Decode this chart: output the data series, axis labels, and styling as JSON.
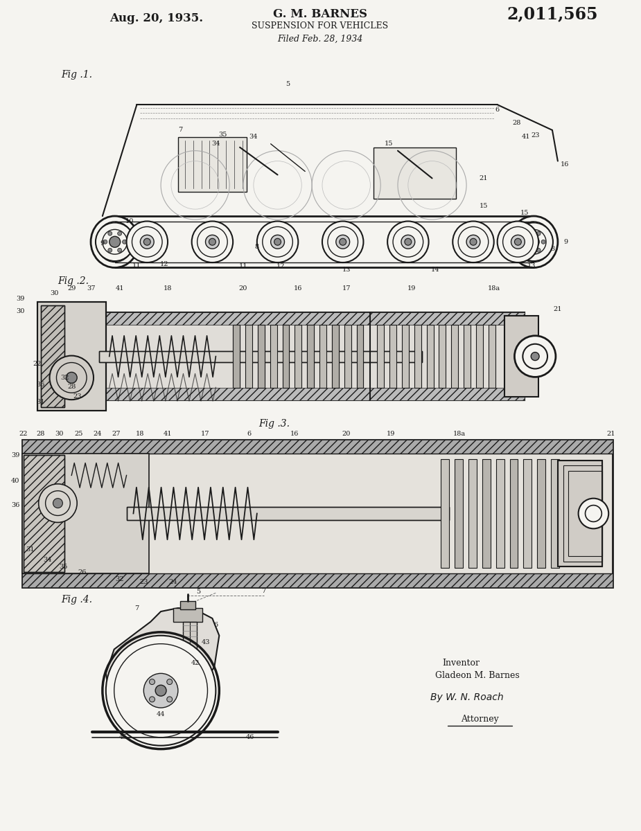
{
  "page_color": "#f5f4f0",
  "text_color": "#1a1a1a",
  "line_color": "#1a1a1a",
  "date_text": "Aug. 20, 1935.",
  "inventor_name": "G. M. BARNES",
  "patent_title": "SUSPENSION FOR VEHICLES",
  "filed_text": "Filed Feb. 28, 1934",
  "patent_number": "2,011,565",
  "fig1_label": "Fig .1.",
  "fig2_label": "Fig .2.",
  "fig3_label": "Fig .3.",
  "fig4_label": "Fig .4.",
  "inventor_line1": "Inventor",
  "inventor_line2": "Gladeon M. Barnes",
  "by_line": "By W. N. Roach",
  "attorney_text": "Attorney",
  "font_family": "serif",
  "hatch_gray": "#aaaaaa",
  "light_gray": "#cccccc",
  "mid_gray": "#999999",
  "dark_gray": "#555555"
}
